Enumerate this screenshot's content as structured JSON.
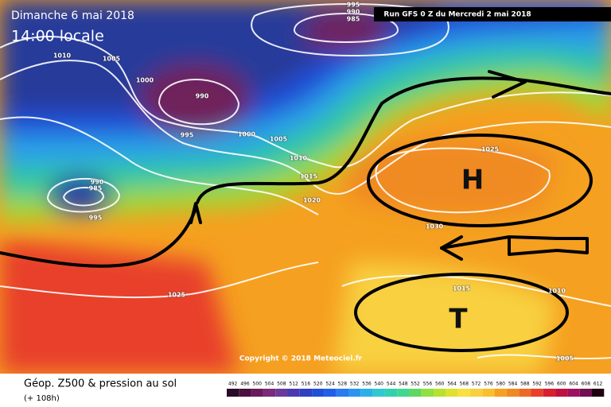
{
  "header": {
    "date": "Dimanche 6 mai 2018",
    "time": "14:00 locale",
    "run": "Run GFS 0 Z du Mercredi 2 mai 2018"
  },
  "isobar_labels": [
    "1010",
    "1005",
    "1000",
    "990",
    "995",
    "1000",
    "1005",
    "1010",
    "1015",
    "1020",
    "995",
    "990",
    "985",
    "990",
    "985",
    "995",
    "1025",
    "1030",
    "1015",
    "1010",
    "1025",
    "1005"
  ],
  "pressure_centers": [
    "H",
    "T"
  ],
  "copyright": "Copyright © 2018 Meteociel.fr",
  "footer": {
    "title": "Géop. Z500 & pression au sol",
    "subtitle": "(+ 108h)"
  },
  "legend": {
    "values": [
      "492",
      "496",
      "500",
      "504",
      "508",
      "512",
      "516",
      "520",
      "524",
      "528",
      "532",
      "536",
      "540",
      "544",
      "548",
      "552",
      "556",
      "560",
      "564",
      "568",
      "572",
      "576",
      "580",
      "584",
      "588",
      "592",
      "596",
      "600",
      "604",
      "608",
      "612"
    ]
  }
}
